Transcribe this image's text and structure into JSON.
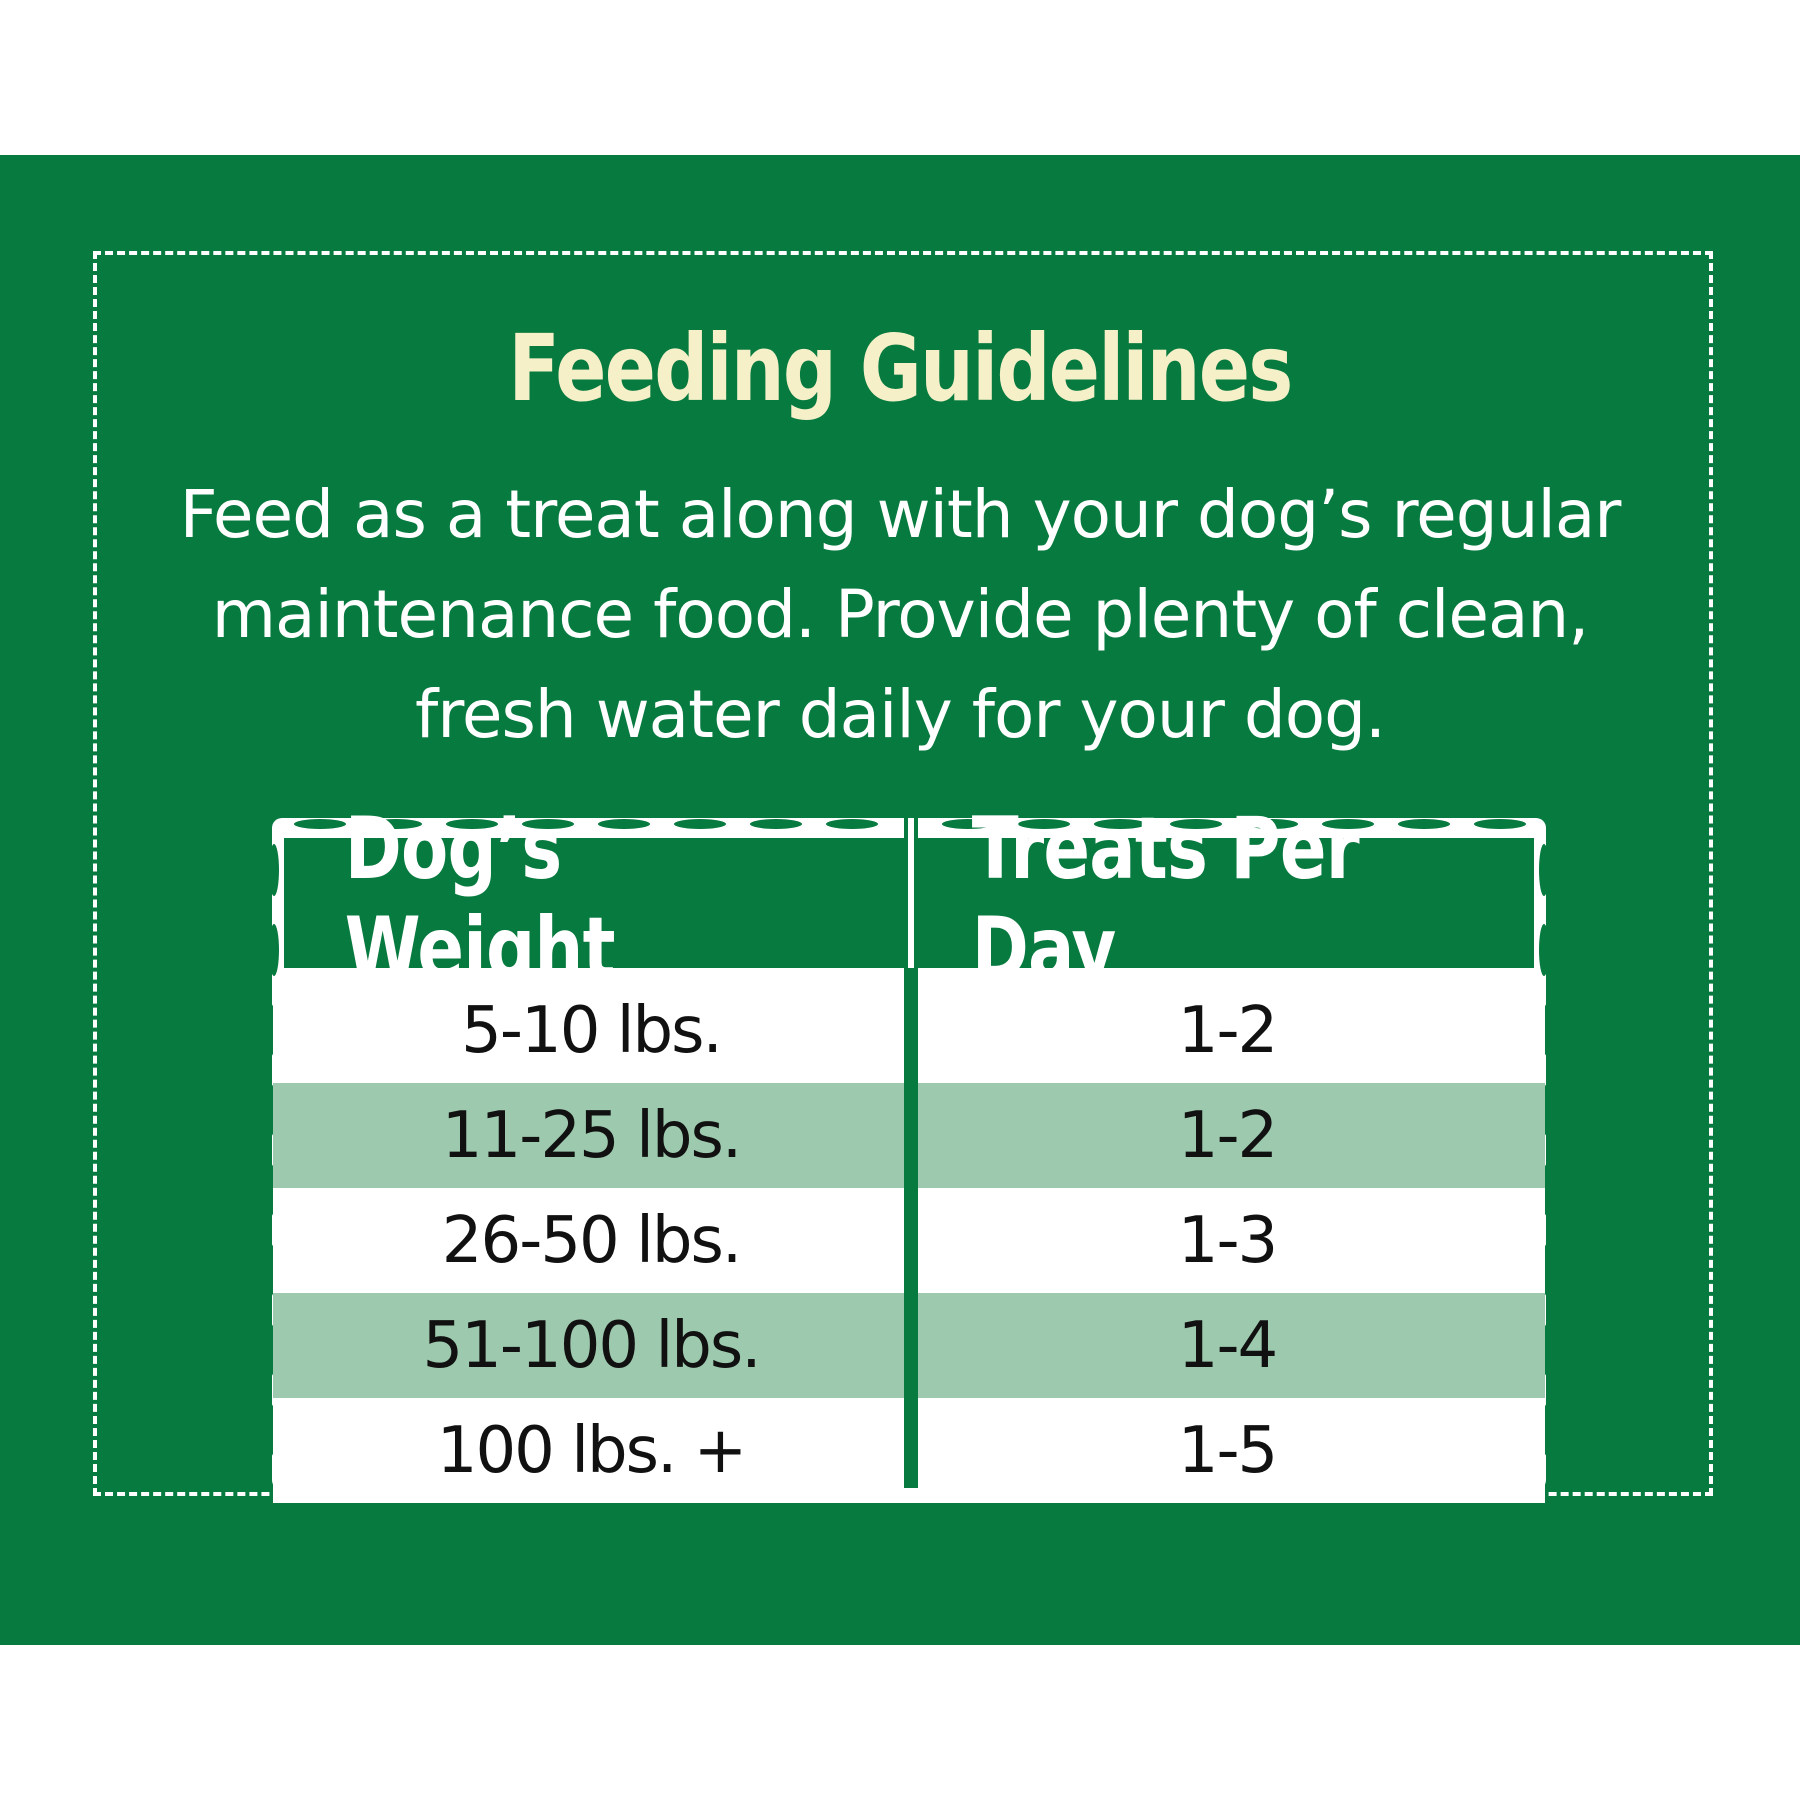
{
  "title": "Feeding Guidelines",
  "intro": "Feed as a treat along with your dog’s regular maintenance food. Provide plenty of clean, fresh water daily for your dog.",
  "table": {
    "headers": [
      "Dog’s Weight",
      "Treats Per Day"
    ],
    "rows": [
      {
        "weight": "5-10 lbs.",
        "treats": "1-2"
      },
      {
        "weight": "11-25 lbs.",
        "treats": "1-2"
      },
      {
        "weight": "26-50 lbs.",
        "treats": "1-3"
      },
      {
        "weight": "51-100 lbs.",
        "treats": "1-4"
      },
      {
        "weight": "100 lbs. +",
        "treats": "1-5"
      }
    ]
  },
  "colors": {
    "background_green": "#077a3f",
    "title_cream": "#f6f0c9",
    "alt_row_green": "#9dcaae",
    "text_dark": "#111111"
  }
}
